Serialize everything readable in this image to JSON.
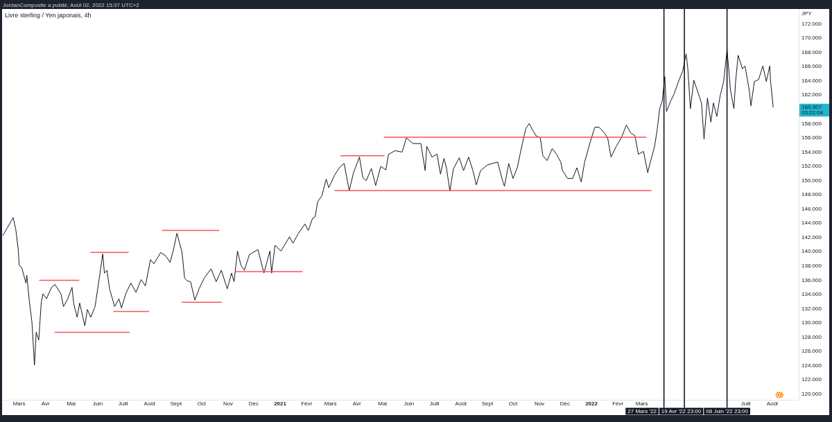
{
  "chart_data": {
    "type": "line",
    "title": "Livre sterling / Yen japonais, 4h",
    "subtitle": "JordanComposite a publié, Août 02, 2022 15:37 UTC+2",
    "ylabel": "JPY",
    "xlim": [
      "2020-02-10",
      "2022-09-01"
    ],
    "ylim": [
      119.2,
      174.1
    ],
    "xticks": [
      {
        "value": "2020-03-01",
        "label": "Mars"
      },
      {
        "value": "2020-04-01",
        "label": "Avr"
      },
      {
        "value": "2020-05-01",
        "label": "Mai"
      },
      {
        "value": "2020-06-01",
        "label": "Juin"
      },
      {
        "value": "2020-07-01",
        "label": "Juill"
      },
      {
        "value": "2020-08-01",
        "label": "Août"
      },
      {
        "value": "2020-09-01",
        "label": "Sept"
      },
      {
        "value": "2020-10-01",
        "label": "Oct"
      },
      {
        "value": "2020-11-01",
        "label": "Nov"
      },
      {
        "value": "2020-12-01",
        "label": "Déc"
      },
      {
        "value": "2021-01-01",
        "label": "2021"
      },
      {
        "value": "2021-02-01",
        "label": "Févr"
      },
      {
        "value": "2021-03-01",
        "label": "Mars"
      },
      {
        "value": "2021-04-01",
        "label": "Avr"
      },
      {
        "value": "2021-05-01",
        "label": "Mai"
      },
      {
        "value": "2021-06-01",
        "label": "Juin"
      },
      {
        "value": "2021-07-01",
        "label": "Juill"
      },
      {
        "value": "2021-08-01",
        "label": "Août"
      },
      {
        "value": "2021-09-01",
        "label": "Sept"
      },
      {
        "value": "2021-10-01",
        "label": "Oct"
      },
      {
        "value": "2021-11-01",
        "label": "Nov"
      },
      {
        "value": "2021-12-01",
        "label": "Déc"
      },
      {
        "value": "2022-01-01",
        "label": "2022"
      },
      {
        "value": "2022-02-01",
        "label": "Févr"
      },
      {
        "value": "2022-03-01",
        "label": "Mars"
      },
      {
        "value": "2022-07-01",
        "label": "Juill"
      },
      {
        "value": "2022-08-01",
        "label": "Août"
      }
    ],
    "yticks": [
      {
        "value": 120,
        "label": "120.000"
      },
      {
        "value": 122,
        "label": "122.000"
      },
      {
        "value": 124,
        "label": "124.000"
      },
      {
        "value": 126,
        "label": "126.000"
      },
      {
        "value": 128,
        "label": "128.000"
      },
      {
        "value": 130,
        "label": "130.000"
      },
      {
        "value": 132,
        "label": "132.000"
      },
      {
        "value": 134,
        "label": "134.000"
      },
      {
        "value": 136,
        "label": "136.000"
      },
      {
        "value": 138,
        "label": "138.000"
      },
      {
        "value": 140,
        "label": "140.000"
      },
      {
        "value": 142,
        "label": "142.000"
      },
      {
        "value": 144,
        "label": "144.000"
      },
      {
        "value": 146,
        "label": "146.000"
      },
      {
        "value": 148,
        "label": "148.000"
      },
      {
        "value": 150,
        "label": "150.000"
      },
      {
        "value": 152,
        "label": "152.000"
      },
      {
        "value": 154,
        "label": "154.000"
      },
      {
        "value": 156,
        "label": "156.000"
      },
      {
        "value": 158,
        "label": "158.000"
      },
      {
        "value": 162,
        "label": "162.000"
      },
      {
        "value": 164,
        "label": "164.000"
      },
      {
        "value": 166,
        "label": "166.000"
      },
      {
        "value": 168,
        "label": "168.000"
      },
      {
        "value": 170,
        "label": "170.000"
      },
      {
        "value": 172,
        "label": "172.000"
      }
    ],
    "series": [
      {
        "color": "#131722",
        "x": [
          "2020-02-11",
          "2020-02-23",
          "2020-02-26",
          "2020-02-29",
          "2020-03-01",
          "2020-03-04",
          "2020-03-09",
          "2020-03-10",
          "2020-03-13",
          "2020-03-16",
          "2020-03-19",
          "2020-03-21",
          "2020-03-24",
          "2020-03-27",
          "2020-03-29",
          "2020-04-02",
          "2020-04-08",
          "2020-04-12",
          "2020-04-19",
          "2020-04-22",
          "2020-04-27",
          "2020-05-02",
          "2020-05-04",
          "2020-05-08",
          "2020-05-11",
          "2020-05-17",
          "2020-05-20",
          "2020-05-24",
          "2020-05-29",
          "2020-06-03",
          "2020-06-07",
          "2020-06-09",
          "2020-06-12",
          "2020-06-15",
          "2020-06-21",
          "2020-06-26",
          "2020-06-29",
          "2020-07-04",
          "2020-07-10",
          "2020-07-16",
          "2020-07-22",
          "2020-07-27",
          "2020-08-02",
          "2020-08-06",
          "2020-08-14",
          "2020-08-20",
          "2020-08-25",
          "2020-08-29",
          "2020-09-02",
          "2020-09-08",
          "2020-09-11",
          "2020-09-14",
          "2020-09-18",
          "2020-09-23",
          "2020-09-28",
          "2020-10-04",
          "2020-10-12",
          "2020-10-18",
          "2020-10-24",
          "2020-10-31",
          "2020-11-05",
          "2020-11-08",
          "2020-11-12",
          "2020-11-16",
          "2020-11-20",
          "2020-11-26",
          "2020-12-06",
          "2020-12-13",
          "2020-12-20",
          "2020-12-22",
          "2020-12-26",
          "2021-01-02",
          "2021-01-12",
          "2021-01-16",
          "2021-01-22",
          "2021-01-30",
          "2021-02-03",
          "2021-02-08",
          "2021-02-11",
          "2021-02-14",
          "2021-02-19",
          "2021-02-24",
          "2021-02-27",
          "2021-03-06",
          "2021-03-12",
          "2021-03-17",
          "2021-03-23",
          "2021-03-28",
          "2021-04-04",
          "2021-04-08",
          "2021-04-12",
          "2021-04-18",
          "2021-04-23",
          "2021-04-29",
          "2021-05-05",
          "2021-05-08",
          "2021-05-16",
          "2021-05-24",
          "2021-05-29",
          "2021-06-06",
          "2021-06-15",
          "2021-06-20",
          "2021-06-22",
          "2021-06-28",
          "2021-07-04",
          "2021-07-08",
          "2021-07-12",
          "2021-07-15",
          "2021-07-19",
          "2021-07-23",
          "2021-07-30",
          "2021-08-04",
          "2021-08-10",
          "2021-08-15",
          "2021-08-19",
          "2021-08-24",
          "2021-09-01",
          "2021-09-13",
          "2021-09-19",
          "2021-09-21",
          "2021-09-26",
          "2021-10-01",
          "2021-10-06",
          "2021-10-10",
          "2021-10-16",
          "2021-10-20",
          "2021-10-24",
          "2021-10-28",
          "2021-11-02",
          "2021-11-05",
          "2021-11-10",
          "2021-11-16",
          "2021-11-21",
          "2021-11-26",
          "2021-11-28",
          "2021-12-04",
          "2021-12-10",
          "2021-12-15",
          "2021-12-20",
          "2021-12-24",
          "2021-12-31",
          "2022-01-05",
          "2022-01-10",
          "2022-01-16",
          "2022-01-20",
          "2022-01-24",
          "2022-01-30",
          "2022-02-05",
          "2022-02-11",
          "2022-02-16",
          "2022-02-21",
          "2022-02-25",
          "2022-03-03",
          "2022-03-08",
          "2022-03-11",
          "2022-03-16",
          "2022-03-19",
          "2022-03-22",
          "2022-03-25",
          "2022-03-28",
          "2022-03-30",
          "2022-04-04",
          "2022-04-08",
          "2022-04-13",
          "2022-04-18",
          "2022-04-22",
          "2022-04-24",
          "2022-04-27",
          "2022-05-01",
          "2022-05-05",
          "2022-05-10",
          "2022-05-13",
          "2022-05-17",
          "2022-05-21",
          "2022-05-24",
          "2022-05-28",
          "2022-06-01",
          "2022-06-05",
          "2022-06-09",
          "2022-06-13",
          "2022-06-17",
          "2022-06-19",
          "2022-06-22",
          "2022-06-27",
          "2022-06-30",
          "2022-07-05",
          "2022-07-07",
          "2022-07-11",
          "2022-07-16",
          "2022-07-21",
          "2022-07-25",
          "2022-07-29",
          "2022-07-30",
          "2022-08-01",
          "2022-08-02"
        ],
        "values": [
          142.3,
          144.8,
          143.2,
          140.3,
          138.1,
          137.8,
          135.6,
          136.7,
          133.0,
          130.1,
          124.1,
          128.7,
          127.6,
          133.0,
          134.1,
          133.4,
          135.0,
          135.4,
          134.1,
          132.3,
          133.4,
          135.0,
          132.7,
          130.8,
          132.8,
          129.6,
          131.9,
          130.8,
          132.3,
          136.3,
          139.7,
          137.0,
          137.4,
          134.8,
          132.3,
          133.4,
          132.1,
          134.1,
          135.6,
          134.3,
          136.1,
          135.2,
          138.9,
          138.3,
          139.9,
          139.4,
          138.5,
          140.3,
          142.6,
          139.9,
          136.3,
          135.9,
          135.8,
          133.2,
          134.8,
          136.3,
          137.6,
          135.8,
          137.4,
          134.8,
          137.0,
          135.8,
          140.1,
          138.1,
          137.4,
          139.6,
          140.3,
          137.0,
          140.1,
          137.0,
          140.9,
          140.1,
          142.1,
          141.2,
          142.5,
          143.9,
          143.0,
          144.7,
          144.9,
          147.0,
          147.9,
          150.2,
          149.0,
          150.8,
          151.9,
          152.4,
          148.6,
          151.1,
          153.3,
          150.4,
          150.0,
          151.7,
          149.3,
          152.0,
          151.5,
          153.7,
          154.2,
          154.0,
          156.0,
          155.2,
          155.2,
          151.4,
          154.8,
          153.3,
          153.7,
          150.9,
          153.1,
          151.8,
          148.5,
          151.6,
          153.2,
          151.4,
          153.3,
          151.4,
          149.4,
          151.4,
          152.2,
          152.6,
          149.9,
          149.2,
          152.4,
          150.3,
          151.8,
          154.1,
          157.3,
          158.0,
          157.1,
          156.3,
          156.0,
          153.5,
          152.8,
          154.5,
          153.7,
          152.6,
          151.4,
          150.3,
          150.3,
          151.8,
          149.8,
          152.6,
          155.6,
          157.5,
          157.5,
          156.7,
          156.0,
          153.3,
          154.8,
          156.0,
          157.8,
          156.7,
          156.3,
          153.7,
          154.1,
          151.1,
          152.6,
          154.8,
          157.1,
          160.1,
          161.2,
          164.6,
          159.7,
          161.2,
          162.2,
          163.9,
          165.4,
          167.8,
          165.7,
          160.1,
          164.1,
          162.7,
          160.9,
          155.8,
          161.6,
          158.2,
          160.9,
          159.0,
          162.0,
          163.9,
          168.4,
          162.7,
          160.1,
          163.9,
          167.6,
          165.7,
          166.1,
          162.7,
          160.5,
          163.9,
          164.2,
          166.1,
          163.9,
          166.1,
          163.9,
          161.6,
          160.307
        ]
      },
      {
        "color": "#f7525f",
        "x": [
          "2020-03-25",
          "2020-05-10"
        ],
        "values": [
          136.0,
          136.0
        ]
      },
      {
        "color": "#f7525f",
        "x": [
          "2020-05-24",
          "2020-07-07"
        ],
        "values": [
          139.9,
          139.9
        ]
      },
      {
        "color": "#f7525f",
        "x": [
          "2020-08-16",
          "2020-10-21"
        ],
        "values": [
          143.0,
          143.0
        ]
      },
      {
        "color": "#f7525f",
        "x": [
          "2020-11-10",
          "2021-01-27"
        ],
        "values": [
          137.2,
          137.2
        ]
      },
      {
        "color": "#f7525f",
        "x": [
          "2020-09-08",
          "2020-10-24"
        ],
        "values": [
          132.9,
          132.9
        ]
      },
      {
        "color": "#f7525f",
        "x": [
          "2020-06-20",
          "2020-07-31"
        ],
        "values": [
          131.6,
          131.6
        ]
      },
      {
        "color": "#f7525f",
        "x": [
          "2020-04-12",
          "2020-07-08"
        ],
        "values": [
          128.7,
          128.7
        ]
      },
      {
        "color": "#f7525f",
        "x": [
          "2021-03-13",
          "2021-05-03"
        ],
        "values": [
          153.5,
          153.5
        ]
      },
      {
        "color": "#f7525f",
        "x": [
          "2021-05-03",
          "2022-03-06"
        ],
        "values": [
          156.1,
          156.1
        ]
      },
      {
        "color": "#f7525f",
        "x": [
          "2021-03-06",
          "2022-03-12"
        ],
        "values": [
          148.6,
          148.6
        ]
      }
    ],
    "ref_lines": [
      {
        "axis": "x",
        "value": "2022-03-27",
        "label": "27 Mars '22",
        "color": "#131722"
      },
      {
        "axis": "x",
        "value": "2022-04-19T23:00",
        "label": "19 Avr '22 23:00",
        "color": "#131722"
      },
      {
        "axis": "x",
        "value": "2022-06-08T23:00",
        "label": "08 Juin '22 23:00",
        "color": "#131722"
      }
    ],
    "annotations": [
      "160.307",
      "03:22:04"
    ]
  }
}
